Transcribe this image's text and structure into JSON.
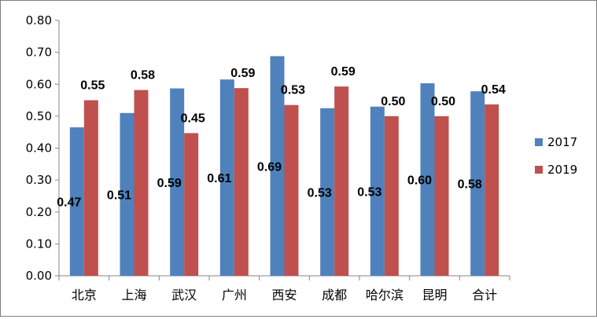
{
  "chart_data": {
    "type": "bar",
    "title": "",
    "xlabel": "",
    "ylabel": "",
    "ylim": [
      0,
      0.8
    ],
    "yticks": [
      "0.00",
      "0.10",
      "0.20",
      "0.30",
      "0.40",
      "0.50",
      "0.60",
      "0.70",
      "0.80"
    ],
    "grid": false,
    "legend_position": "right",
    "categories": [
      "北京",
      "上海",
      "武汉",
      "广州",
      "西安",
      "成都",
      "哈尔滨",
      "昆明",
      "合计"
    ],
    "series": [
      {
        "name": "2017",
        "color": "#4f81bd",
        "values": [
          0.465,
          0.51,
          0.587,
          0.615,
          0.688,
          0.525,
          0.53,
          0.603,
          0.578
        ],
        "labels": [
          "0.47",
          "0.51",
          "0.59",
          "0.61",
          "0.69",
          "0.53",
          "0.53",
          "0.60",
          "0.58"
        ]
      },
      {
        "name": "2019",
        "color": "#c0504d",
        "values": [
          0.55,
          0.582,
          0.447,
          0.588,
          0.535,
          0.593,
          0.5,
          0.5,
          0.537
        ],
        "labels": [
          "0.55",
          "0.58",
          "0.45",
          "0.59",
          "0.53",
          "0.59",
          "0.50",
          "0.50",
          "0.54"
        ]
      }
    ]
  }
}
